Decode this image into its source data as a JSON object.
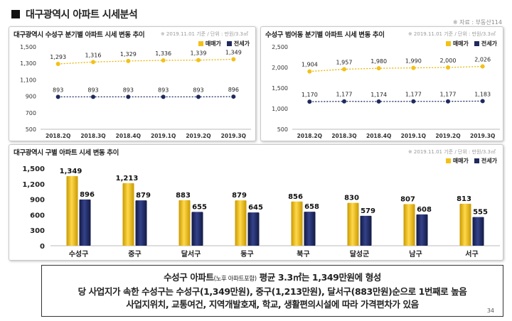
{
  "page": {
    "title": "대구광역시 아파트 시세분석",
    "source": "※ 자료 : 부동산114",
    "page_number": "34"
  },
  "colors": {
    "sale": "#f2c118",
    "jeonse": "#1f2a5e",
    "sale_line": "#e8b400",
    "jeonse_line": "#1f2a5e"
  },
  "legend": {
    "sale": "매매가",
    "jeonse": "전세가"
  },
  "panels": {
    "left_title": "대구광역시 수성구 분기별 아파트 시세 변동 추이",
    "left_note": "※ 2019.11.01 기준 / 단위 : 만원/3.3㎡",
    "right_title": "수성구 범어동 분기별 아파트 시세 변동 추이",
    "right_note": "※ 2019.11.01 기준 / 단위 : 만원/3.3㎡",
    "bottom_title": "대구광역시 구별 아파트 시세 변동 추이",
    "bottom_note": "※ 2019.11.01 기준 / 단위 : 만원/3.3㎡"
  },
  "summary": {
    "line1_a": "수성구 아파트",
    "line1_small": "(노후 아파트포함)",
    "line1_b": " 평균 3.3㎡는 1,349만원에 형성",
    "line2": "당 사업지가 속한 수성구는 수성구(1,349만원), 중구(1,213만원), 달서구(883만원)순으로 1번째로 높음",
    "line3": "사업지위치, 교통여건, 지역개발호재, 학교, 생활편의시설에 따라 가격편차가 있음"
  },
  "chart_data": [
    {
      "type": "line",
      "title": "대구광역시 수성구 분기별 아파트 시세 변동 추이",
      "categories": [
        "2018.2Q",
        "2018.3Q",
        "2018.4Q",
        "2019.1Q",
        "2019.2Q",
        "2019.3Q"
      ],
      "series": [
        {
          "name": "매매가",
          "values": [
            1293,
            1316,
            1329,
            1336,
            1339,
            1349
          ]
        },
        {
          "name": "전세가",
          "values": [
            893,
            893,
            893,
            893,
            893,
            896
          ]
        }
      ],
      "yticks": [
        "500",
        "700",
        "900",
        "1,100",
        "1,300",
        "1,500"
      ],
      "ylim": [
        500,
        1500
      ],
      "value_labels": [
        [
          "1,293",
          "1,316",
          "1,329",
          "1,336",
          "1,339",
          "1,349"
        ],
        [
          "893",
          "893",
          "893",
          "893",
          "893",
          "896"
        ]
      ],
      "legend": "top-right",
      "grid": false
    },
    {
      "type": "line",
      "title": "수성구 범어동 분기별 아파트 시세 변동 추이",
      "categories": [
        "2018.2Q",
        "2018.3Q",
        "2018.4Q",
        "2019.1Q",
        "2019.2Q",
        "2019.3Q"
      ],
      "series": [
        {
          "name": "매매가",
          "values": [
            1904,
            1957,
            1980,
            1990,
            2000,
            2026
          ]
        },
        {
          "name": "전세가",
          "values": [
            1170,
            1177,
            1174,
            1177,
            1177,
            1183
          ]
        }
      ],
      "yticks": [
        "500",
        "1,000",
        "1,500",
        "2,000",
        "2,500"
      ],
      "ylim": [
        500,
        2500
      ],
      "value_labels": [
        [
          "1,904",
          "1,957",
          "1,980",
          "1,990",
          "2,000",
          "2,026"
        ],
        [
          "1,170",
          "1,177",
          "1,174",
          "1,177",
          "1,177",
          "1,183"
        ]
      ],
      "legend": "top-right",
      "grid": false
    },
    {
      "type": "bar",
      "title": "대구광역시 구별 아파트 시세 변동 추이",
      "categories": [
        "수성구",
        "중구",
        "달서구",
        "동구",
        "북구",
        "달성군",
        "남구",
        "서구"
      ],
      "series": [
        {
          "name": "매매가",
          "values": [
            1349,
            1213,
            883,
            879,
            856,
            830,
            807,
            813
          ]
        },
        {
          "name": "전세가",
          "values": [
            896,
            879,
            655,
            645,
            658,
            579,
            608,
            555
          ]
        }
      ],
      "yticks": [
        "0",
        "300",
        "600",
        "900",
        "1,200",
        "1,500"
      ],
      "ylim": [
        0,
        1500
      ],
      "value_labels": [
        [
          "1,349",
          "1,213",
          "883",
          "879",
          "856",
          "830",
          "807",
          "813"
        ],
        [
          "896",
          "879",
          "655",
          "645",
          "658",
          "579",
          "608",
          "555"
        ]
      ],
      "legend": "top-right",
      "grid": false
    }
  ]
}
